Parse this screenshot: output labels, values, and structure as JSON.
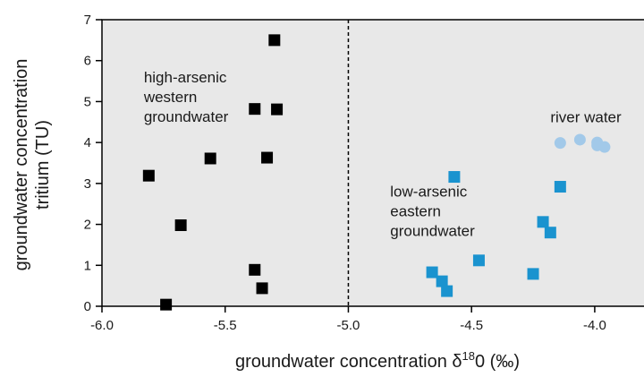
{
  "chart_data": {
    "type": "scatter",
    "xlabel_prefix": "groundwater concentration ",
    "xlabel_symbol": "δ",
    "xlabel_sup": "18",
    "xlabel_suffix": "0 (‰)",
    "ylabel_line1": "groundwater concentration",
    "ylabel_line2": "tritium (TU)",
    "xlim": [
      -6.0,
      -3.8
    ],
    "ylim": [
      0,
      7
    ],
    "x_ticks": [
      -6.0,
      -5.5,
      -5.0,
      -4.5,
      -4.0
    ],
    "x_tick_labels": [
      "-6.0",
      "-5.5",
      "-5.0",
      "-4.5",
      "-4.0"
    ],
    "y_ticks": [
      0,
      1,
      2,
      3,
      4,
      5,
      6,
      7
    ],
    "y_tick_labels": [
      "0",
      "1",
      "2",
      "3",
      "4",
      "5",
      "6",
      "7"
    ],
    "reference_line_x": -5.0,
    "grid": false,
    "series": [
      {
        "marker": "square",
        "color": "#000000",
        "points": [
          [
            -5.3,
            6.5
          ],
          [
            -5.38,
            4.82
          ],
          [
            -5.29,
            4.81
          ],
          [
            -5.56,
            3.61
          ],
          [
            -5.33,
            3.63
          ],
          [
            -5.81,
            3.19
          ],
          [
            -5.68,
            1.98
          ],
          [
            -5.38,
            0.89
          ],
          [
            -5.35,
            0.44
          ],
          [
            -5.74,
            0.04
          ]
        ]
      },
      {
        "marker": "square",
        "color": "#1a93cf",
        "points": [
          [
            -4.57,
            3.16
          ],
          [
            -4.14,
            2.92
          ],
          [
            -4.21,
            2.06
          ],
          [
            -4.18,
            1.8
          ],
          [
            -4.47,
            1.12
          ],
          [
            -4.25,
            0.79
          ],
          [
            -4.66,
            0.83
          ],
          [
            -4.62,
            0.61
          ],
          [
            -4.6,
            0.37
          ]
        ]
      },
      {
        "marker": "circle",
        "color": "#a2c9e9",
        "points": [
          [
            -4.14,
            3.99
          ],
          [
            -4.06,
            4.07
          ],
          [
            -3.99,
            4.0
          ],
          [
            -3.99,
            3.93
          ],
          [
            -3.96,
            3.89
          ]
        ]
      }
    ],
    "annotations": [
      {
        "lines": [
          "high-arsenic",
          "western",
          "groundwater"
        ],
        "x": -5.83,
        "y": 5.47
      },
      {
        "lines": [
          "low-arsenic",
          "eastern",
          "groundwater"
        ],
        "x": -4.83,
        "y": 2.68
      },
      {
        "lines": [
          "river water"
        ],
        "x": -4.18,
        "y": 4.5
      }
    ],
    "colors": {
      "plot_background": "#e8e8e8",
      "axis": "#000000",
      "reference_line": "#000000"
    }
  }
}
